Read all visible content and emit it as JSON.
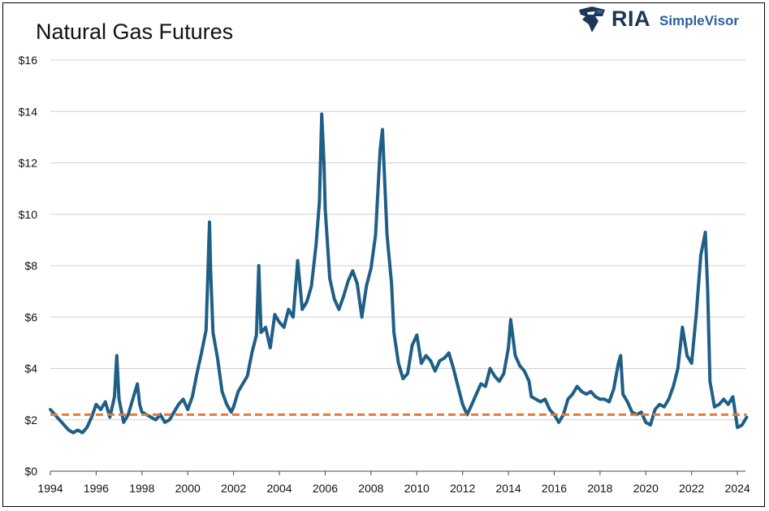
{
  "chart_data": {
    "type": "line",
    "title": "Natural Gas Futures",
    "xlabel": "",
    "ylabel": "",
    "xlim": [
      1994,
      2024.5
    ],
    "ylim": [
      0,
      16
    ],
    "x_ticks": [
      "1994",
      "1996",
      "1998",
      "2000",
      "2002",
      "2004",
      "2006",
      "2008",
      "2010",
      "2012",
      "2014",
      "2016",
      "2018",
      "2020",
      "2022",
      "2024"
    ],
    "y_ticks": [
      "$0",
      "$2",
      "$4",
      "$6",
      "$8",
      "$10",
      "$12",
      "$14",
      "$16"
    ],
    "grid": "horizontal",
    "series": [
      {
        "color": "#1f5f86",
        "x": [
          1994.0,
          1994.2,
          1994.4,
          1994.6,
          1994.8,
          1995.0,
          1995.2,
          1995.4,
          1995.6,
          1995.8,
          1996.0,
          1996.2,
          1996.4,
          1996.6,
          1996.8,
          1996.9,
          1997.0,
          1997.2,
          1997.4,
          1997.6,
          1997.8,
          1997.9,
          1998.0,
          1998.2,
          1998.4,
          1998.6,
          1998.8,
          1999.0,
          1999.2,
          1999.4,
          1999.6,
          1999.8,
          2000.0,
          2000.2,
          2000.4,
          2000.6,
          2000.8,
          2000.95,
          2001.0,
          2001.1,
          2001.3,
          2001.5,
          2001.7,
          2001.9,
          2002.0,
          2002.2,
          2002.4,
          2002.6,
          2002.8,
          2003.0,
          2003.1,
          2003.2,
          2003.4,
          2003.6,
          2003.8,
          2004.0,
          2004.2,
          2004.4,
          2004.6,
          2004.8,
          2005.0,
          2005.2,
          2005.4,
          2005.6,
          2005.75,
          2005.85,
          2005.95,
          2006.0,
          2006.2,
          2006.4,
          2006.6,
          2006.8,
          2007.0,
          2007.2,
          2007.4,
          2007.6,
          2007.8,
          2008.0,
          2008.2,
          2008.4,
          2008.5,
          2008.7,
          2008.9,
          2009.0,
          2009.2,
          2009.4,
          2009.6,
          2009.8,
          2010.0,
          2010.2,
          2010.4,
          2010.6,
          2010.8,
          2011.0,
          2011.2,
          2011.4,
          2011.6,
          2011.8,
          2012.0,
          2012.2,
          2012.4,
          2012.6,
          2012.8,
          2013.0,
          2013.2,
          2013.4,
          2013.6,
          2013.8,
          2014.0,
          2014.1,
          2014.3,
          2014.5,
          2014.7,
          2014.9,
          2015.0,
          2015.2,
          2015.4,
          2015.6,
          2015.8,
          2016.0,
          2016.2,
          2016.4,
          2016.6,
          2016.8,
          2017.0,
          2017.2,
          2017.4,
          2017.6,
          2017.8,
          2018.0,
          2018.2,
          2018.4,
          2018.6,
          2018.8,
          2018.9,
          2019.0,
          2019.2,
          2019.4,
          2019.6,
          2019.8,
          2020.0,
          2020.2,
          2020.4,
          2020.6,
          2020.8,
          2021.0,
          2021.2,
          2021.4,
          2021.6,
          2021.8,
          2022.0,
          2022.2,
          2022.4,
          2022.6,
          2022.7,
          2022.8,
          2023.0,
          2023.2,
          2023.4,
          2023.6,
          2023.8,
          2024.0,
          2024.2,
          2024.4
        ],
        "values": [
          2.4,
          2.2,
          2.0,
          1.8,
          1.6,
          1.5,
          1.6,
          1.5,
          1.7,
          2.1,
          2.6,
          2.4,
          2.7,
          2.1,
          2.9,
          4.5,
          2.8,
          1.9,
          2.2,
          2.8,
          3.4,
          2.6,
          2.3,
          2.2,
          2.1,
          2.0,
          2.2,
          1.9,
          2.0,
          2.3,
          2.6,
          2.8,
          2.4,
          2.9,
          3.8,
          4.6,
          5.5,
          9.7,
          7.8,
          5.4,
          4.4,
          3.1,
          2.6,
          2.3,
          2.5,
          3.1,
          3.4,
          3.7,
          4.6,
          5.3,
          8.0,
          5.4,
          5.6,
          4.8,
          6.1,
          5.8,
          5.6,
          6.3,
          6.0,
          8.2,
          6.3,
          6.6,
          7.2,
          8.8,
          10.5,
          13.9,
          12.0,
          10.2,
          7.5,
          6.7,
          6.3,
          6.8,
          7.4,
          7.8,
          7.3,
          6.0,
          7.2,
          7.9,
          9.2,
          12.5,
          13.3,
          9.2,
          7.3,
          5.4,
          4.2,
          3.6,
          3.8,
          4.9,
          5.3,
          4.2,
          4.5,
          4.3,
          3.9,
          4.3,
          4.4,
          4.6,
          4.0,
          3.3,
          2.6,
          2.2,
          2.6,
          3.0,
          3.4,
          3.3,
          4.0,
          3.7,
          3.5,
          3.8,
          4.8,
          5.9,
          4.5,
          4.1,
          3.9,
          3.5,
          2.9,
          2.8,
          2.7,
          2.8,
          2.4,
          2.2,
          1.9,
          2.2,
          2.8,
          3.0,
          3.3,
          3.1,
          3.0,
          3.1,
          2.9,
          2.8,
          2.8,
          2.7,
          3.2,
          4.2,
          4.5,
          3.0,
          2.7,
          2.3,
          2.2,
          2.3,
          1.9,
          1.8,
          2.4,
          2.6,
          2.5,
          2.8,
          3.3,
          4.0,
          5.6,
          4.5,
          4.2,
          6.1,
          8.4,
          9.3,
          7.0,
          3.5,
          2.5,
          2.6,
          2.8,
          2.6,
          2.9,
          1.7,
          1.8,
          2.1
        ]
      },
      {
        "type": "reference-line",
        "color": "#e07b39",
        "style": "dashed",
        "x": [
          1994.0,
          2024.4
        ],
        "values": [
          2.2,
          2.2
        ]
      }
    ]
  },
  "logo": {
    "brand": "RIA",
    "product": "SimpleVisor"
  }
}
